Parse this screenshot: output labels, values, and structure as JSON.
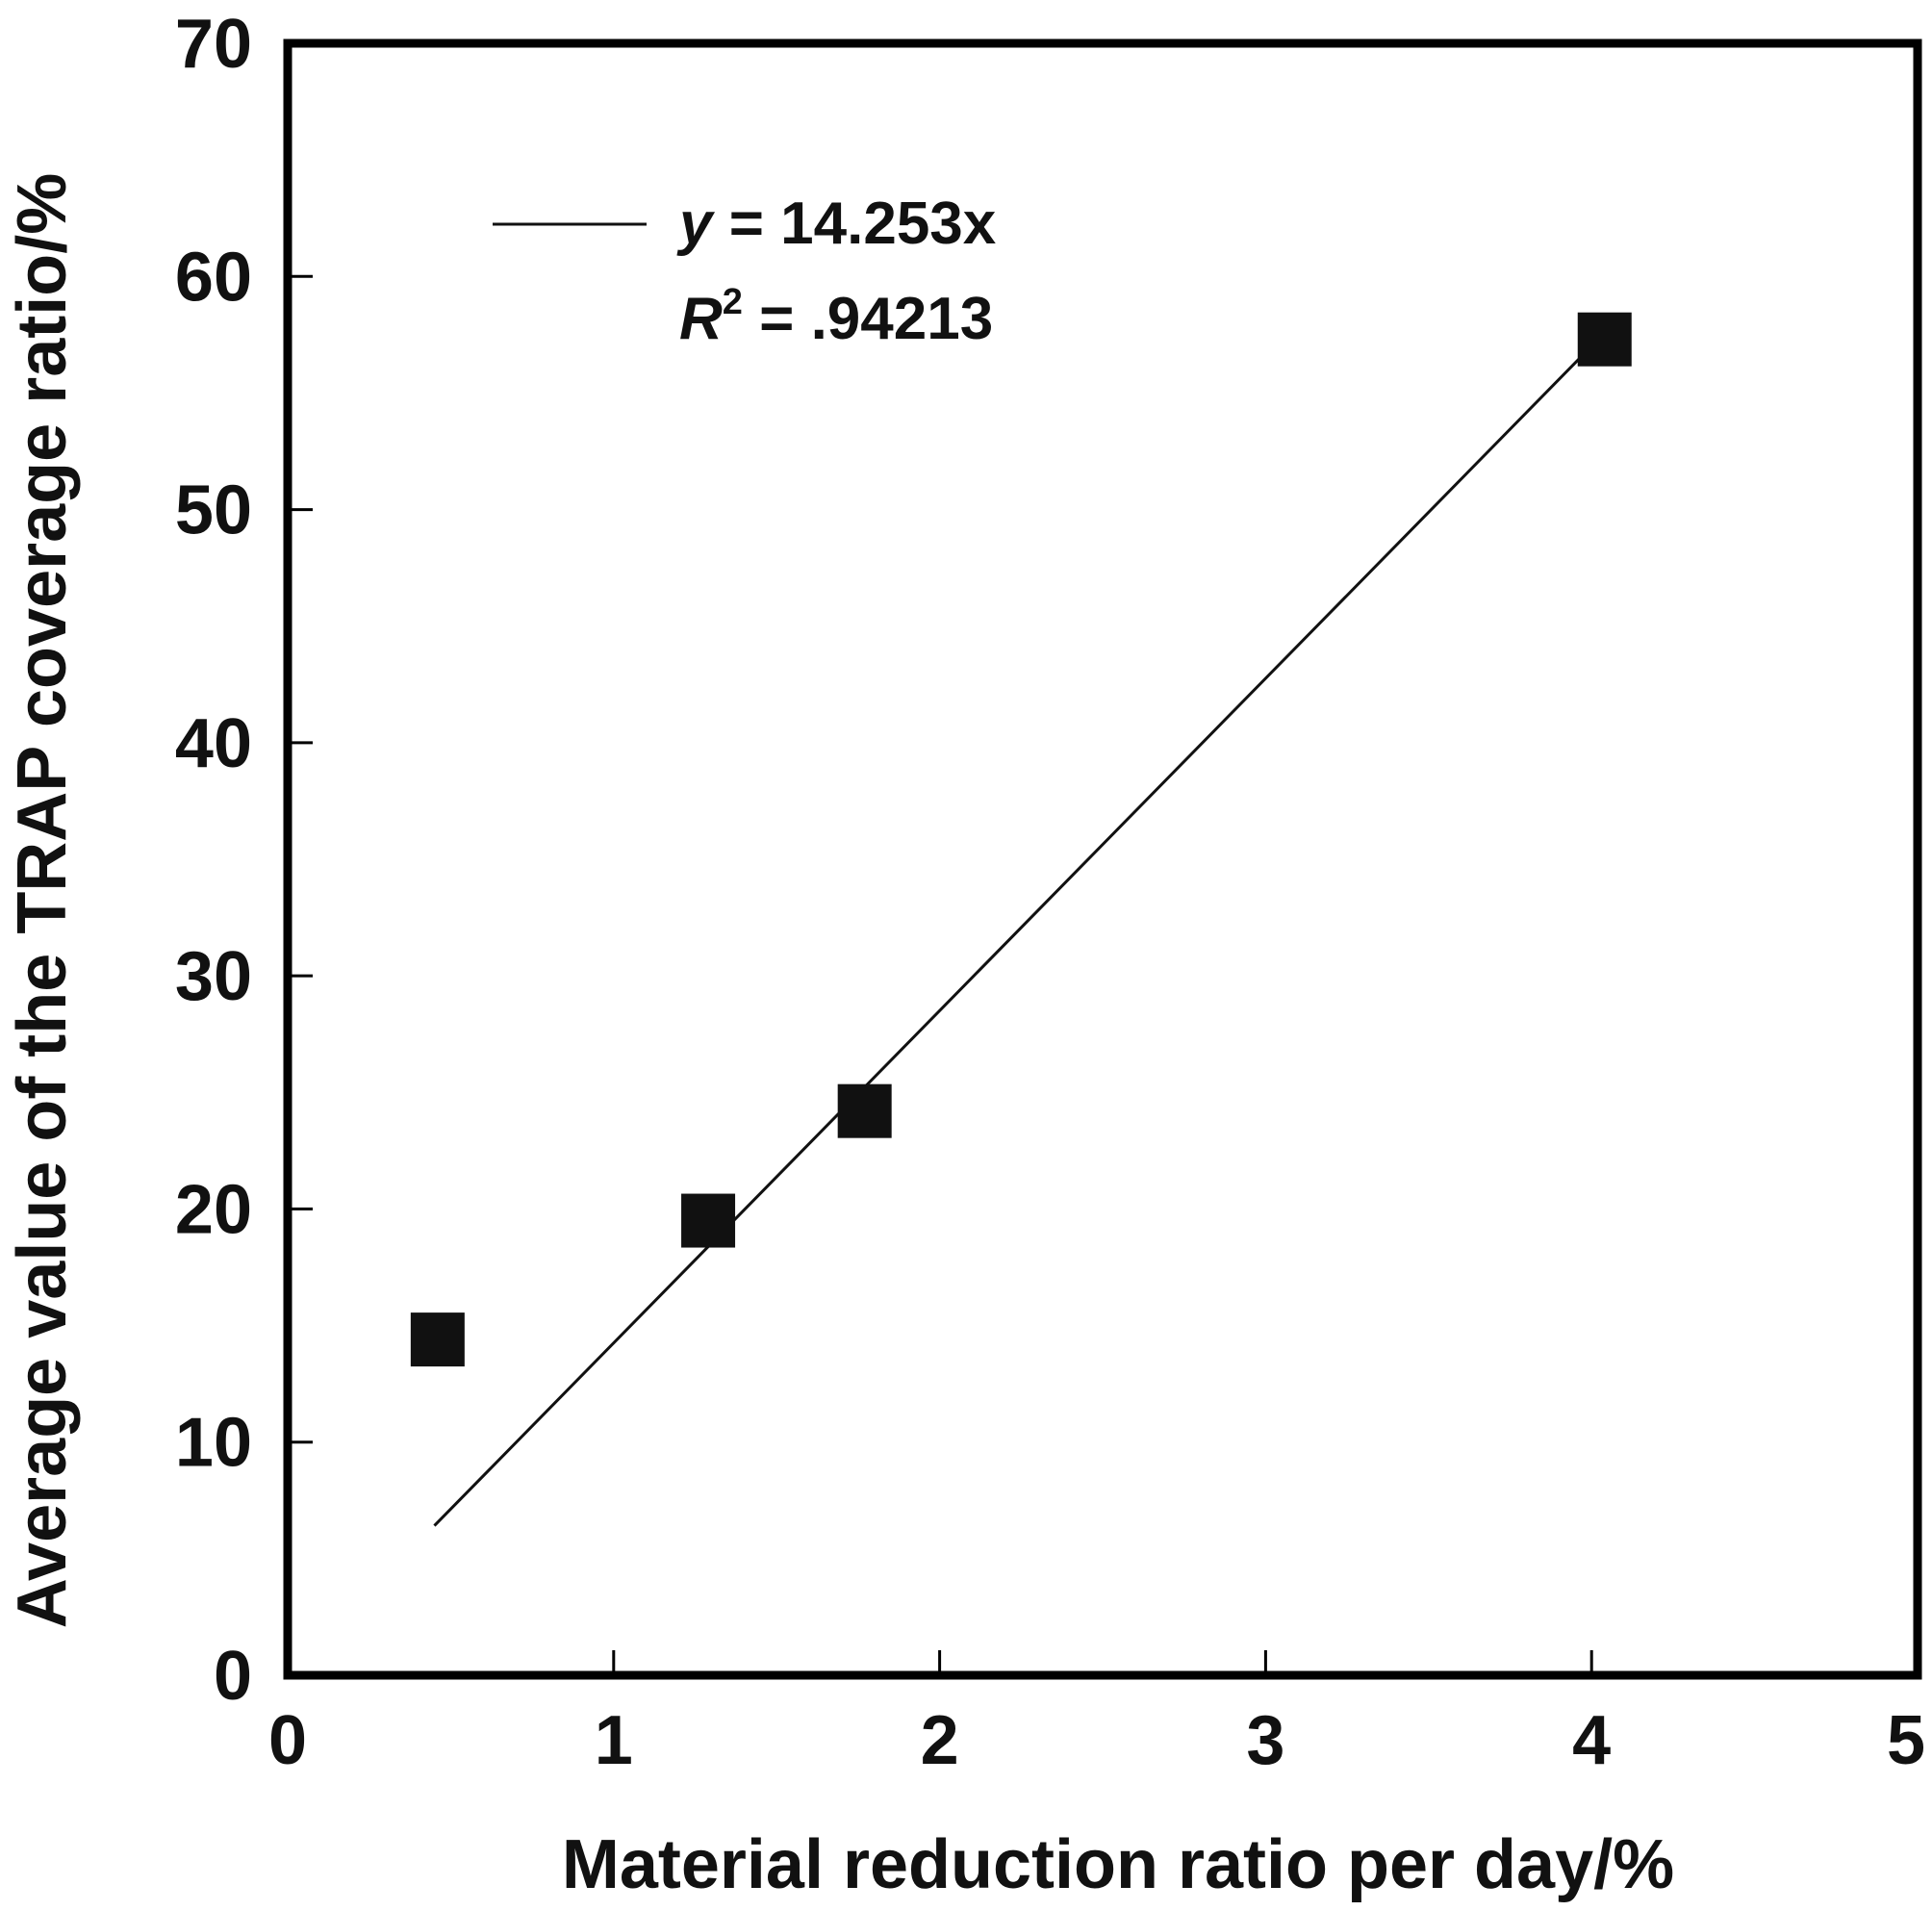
{
  "chart_data": {
    "type": "scatter",
    "title": "",
    "xlabel": "Material reduction ratio per day/%",
    "ylabel": "Average value of the TRAP coverage ratio/%",
    "xlim": [
      0,
      5
    ],
    "ylim": [
      0,
      70
    ],
    "x_ticks": [
      "0",
      "1",
      "2",
      "3",
      "4",
      "5"
    ],
    "y_ticks": [
      "0",
      "10",
      "20",
      "30",
      "40",
      "50",
      "60",
      "70"
    ],
    "grid": false,
    "legend_position": "top-left",
    "colors": {
      "marker": "#111111",
      "line": "#111111",
      "frame": "#000000"
    },
    "series": [
      {
        "kind": "scatter",
        "marker": "square",
        "points": [
          {
            "x": 0.46,
            "y": 14.4
          },
          {
            "x": 1.29,
            "y": 19.5
          },
          {
            "x": 1.77,
            "y": 24.2
          },
          {
            "x": 4.04,
            "y": 57.3
          }
        ]
      },
      {
        "kind": "line",
        "slope": 14.253,
        "intercept": 0,
        "x_range": [
          0.45,
          4.0
        ]
      }
    ],
    "legend": {
      "equation_var": "y",
      "equation_rest": " = 14.253x",
      "r2_var": "R",
      "r2_sup": "2",
      "r2_rest": " = .94213"
    }
  }
}
